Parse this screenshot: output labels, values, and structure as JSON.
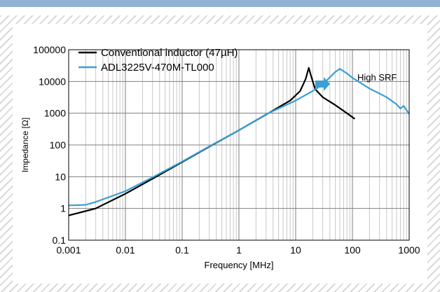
{
  "chart_data": {
    "type": "line",
    "title": "",
    "xlabel": "Frequency [MHz]",
    "ylabel": "Impedance [Ω]",
    "x_scale": "log",
    "y_scale": "log",
    "xlim": [
      0.001,
      1000
    ],
    "ylim": [
      0.1,
      100000
    ],
    "x_ticks": [
      "0.001",
      "0.01",
      "0.1",
      "1",
      "10",
      "100",
      "1000"
    ],
    "y_ticks": [
      "0.1",
      "1",
      "10",
      "100",
      "1000",
      "10000",
      "100000"
    ],
    "grid": true,
    "legend_position": "top-left",
    "annotation": "High SRF",
    "series": [
      {
        "name": "Conventional inductor (47µH)",
        "color": "#000000",
        "points": [
          [
            0.001,
            0.6
          ],
          [
            0.003,
            1.0
          ],
          [
            0.01,
            2.9
          ],
          [
            0.03,
            8.6
          ],
          [
            0.1,
            29
          ],
          [
            0.3,
            88
          ],
          [
            1,
            290
          ],
          [
            3,
            900
          ],
          [
            8,
            2500
          ],
          [
            12,
            5000
          ],
          [
            15,
            12000
          ],
          [
            17,
            27000
          ],
          [
            18.5,
            16000
          ],
          [
            22,
            5800
          ],
          [
            30,
            3200
          ],
          [
            50,
            1800
          ],
          [
            80,
            1000
          ],
          [
            110,
            660
          ]
        ]
      },
      {
        "name": "ADL3225V-470M-TL000",
        "color": "#3a9fd3",
        "points": [
          [
            0.001,
            1.25
          ],
          [
            0.002,
            1.3
          ],
          [
            0.003,
            1.6
          ],
          [
            0.01,
            3.5
          ],
          [
            0.03,
            9.5
          ],
          [
            0.1,
            30
          ],
          [
            0.3,
            90
          ],
          [
            1,
            290
          ],
          [
            3,
            920
          ],
          [
            10,
            2500
          ],
          [
            20,
            5000
          ],
          [
            30,
            8000
          ],
          [
            40,
            13500
          ],
          [
            50,
            20000
          ],
          [
            60,
            25000
          ],
          [
            80,
            18000
          ],
          [
            100,
            13000
          ],
          [
            200,
            6000
          ],
          [
            400,
            3200
          ],
          [
            600,
            1900
          ],
          [
            700,
            1400
          ],
          [
            800,
            1700
          ],
          [
            1000,
            950
          ]
        ]
      }
    ]
  }
}
